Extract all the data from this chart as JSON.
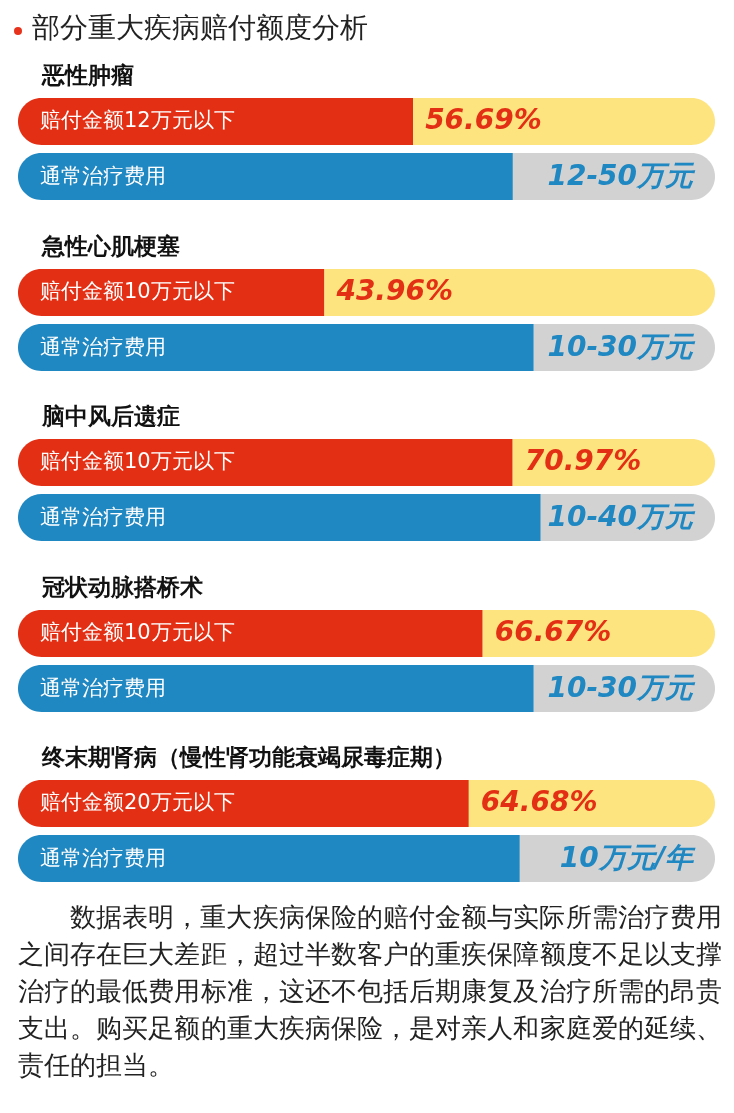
{
  "chart_data": [
    {
      "type": "other",
      "title": "部分重大疾病赔付额度分析"
    },
    {
      "type": "bar",
      "title": "恶性肿瘤",
      "orientation": "horizontal",
      "stacked": true,
      "tick_labels": "y",
      "categories": [
        "赔付金额12万元以下",
        "通常治疗费用"
      ],
      "series": [
        {
          "colors": [
            "#e32f14",
            "#1f87c1"
          ],
          "values": [
            56.69,
            71
          ],
          "value_labels": [
            "56.69%",
            null
          ]
        },
        {
          "colors": [
            "#fde47f",
            "#d2d2d2"
          ],
          "values": [
            43.31,
            29
          ]
        }
      ],
      "annotations": [
        "12-50万元"
      ]
    },
    {
      "type": "bar",
      "title": "急性心肌梗塞",
      "orientation": "horizontal",
      "stacked": true,
      "tick_labels": "y",
      "categories": [
        "赔付金额10万元以下",
        "通常治疗费用"
      ],
      "series": [
        {
          "colors": [
            "#e32f14",
            "#1f87c1"
          ],
          "values": [
            43.96,
            74
          ],
          "value_labels": [
            "43.96%",
            null
          ]
        },
        {
          "colors": [
            "#fde47f",
            "#d2d2d2"
          ],
          "values": [
            56.04,
            26
          ]
        }
      ],
      "annotations": [
        "10-30万元"
      ]
    },
    {
      "type": "bar",
      "title": "脑中风后遗症",
      "orientation": "horizontal",
      "stacked": true,
      "tick_labels": "y",
      "categories": [
        "赔付金额10万元以下",
        "通常治疗费用"
      ],
      "series": [
        {
          "colors": [
            "#e32f14",
            "#1f87c1"
          ],
          "values": [
            70.97,
            75
          ],
          "value_labels": [
            "70.97%",
            null
          ]
        },
        {
          "colors": [
            "#fde47f",
            "#d2d2d2"
          ],
          "values": [
            29.03,
            25
          ]
        }
      ],
      "annotations": [
        "10-40万元"
      ]
    },
    {
      "type": "bar",
      "title": "冠状动脉搭桥术",
      "orientation": "horizontal",
      "stacked": true,
      "tick_labels": "y",
      "categories": [
        "赔付金额10万元以下",
        "通常治疗费用"
      ],
      "series": [
        {
          "colors": [
            "#e32f14",
            "#1f87c1"
          ],
          "values": [
            66.67,
            74
          ],
          "value_labels": [
            "66.67%",
            null
          ]
        },
        {
          "colors": [
            "#fde47f",
            "#d2d2d2"
          ],
          "values": [
            33.33,
            26
          ]
        }
      ],
      "annotations": [
        "10-30万元"
      ]
    },
    {
      "type": "bar",
      "title": "终末期肾病（慢性肾功能衰竭尿毒症期）",
      "orientation": "horizontal",
      "stacked": true,
      "tick_labels": "y",
      "categories": [
        "赔付金额20万元以下",
        "通常治疗费用"
      ],
      "series": [
        {
          "colors": [
            "#e32f14",
            "#1f87c1"
          ],
          "values": [
            64.68,
            72
          ],
          "value_labels": [
            "64.68%",
            null
          ]
        },
        {
          "colors": [
            "#fde47f",
            "#d2d2d2"
          ],
          "values": [
            35.32,
            28
          ]
        }
      ],
      "annotations": [
        "10万元/年"
      ]
    },
    {
      "type": "other",
      "annotations": [
        "数据表明，重大疾病保险的赔付金额与实际所需治疗费用之间存在巨大差距，超过半数客户的重疾保障额度不足以支撑治疗的最低费用标准，这还不包括后期康复及治疗所需的昂贵支出。购买足额的重大疾病保险，是对亲人和家庭爱的延续、责任的担当。"
      ]
    }
  ]
}
